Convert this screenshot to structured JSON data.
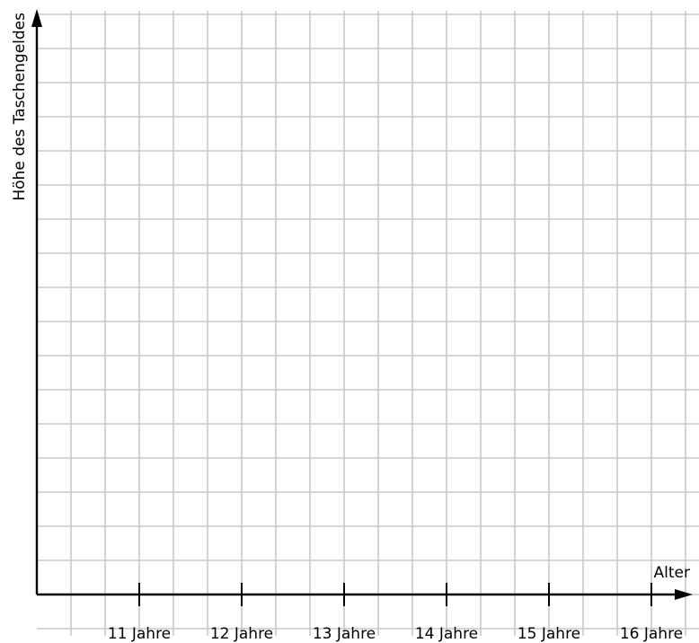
{
  "chart_data": {
    "type": "line",
    "title": "",
    "xlabel": "Alter",
    "ylabel": "Höhe des Taschengeldes",
    "categories": [
      "11 Jahre",
      "12 Jahre",
      "13 Jahre",
      "14 Jahre",
      "15 Jahre",
      "16 Jahre"
    ],
    "series": [],
    "grid": true,
    "legend": "none"
  },
  "colors": {
    "grid": "#c8c8c8",
    "axis": "#000000",
    "background": "#ffffff"
  }
}
